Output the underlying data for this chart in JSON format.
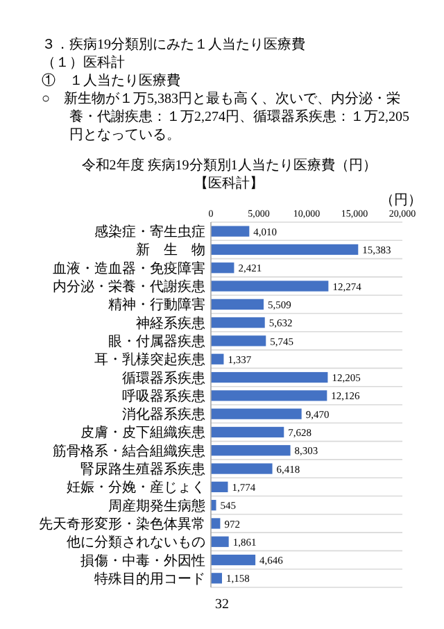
{
  "chart_data": {
    "type": "bar",
    "orientation": "horizontal",
    "title": "令和2年度 疾病19分類別1人当たり医療費（円）",
    "subtitle": "【医科計】",
    "xlabel": "（円）",
    "categories": [
      "感染症・寄生虫症",
      "新　生　物",
      "血液・造血器・免疫障害",
      "内分泌・栄養・代謝疾患",
      "精神・行動障害",
      "神経系疾患",
      "眼・付属器疾患",
      "耳・乳様突起疾患",
      "循環器系疾患",
      "呼吸器系疾患",
      "消化器系疾患",
      "皮膚・皮下組織疾患",
      "筋骨格系・結合組織疾患",
      "腎尿路生殖器系疾患",
      "妊娠・分娩・産じょく",
      "周産期発生病態",
      "先天奇形変形・染色体異常",
      "他に分類されないもの",
      "損傷・中毒・外因性",
      "特殊目的用コード"
    ],
    "values": [
      4010,
      15383,
      2421,
      12274,
      5509,
      5632,
      5745,
      1337,
      12205,
      12126,
      9470,
      7628,
      8303,
      6418,
      1774,
      545,
      972,
      1861,
      4646,
      1158
    ],
    "value_labels": [
      "4,010",
      "15,383",
      "2,421",
      "12,274",
      "5,509",
      "5,632",
      "5,745",
      "1,337",
      "12,205",
      "12,126",
      "9,470",
      "7,628",
      "8,303",
      "6,418",
      "1,774",
      "545",
      "972",
      "1,861",
      "4,646",
      "1,158"
    ],
    "color": "#4472c4",
    "xlim": [
      0,
      20000
    ],
    "xticks": [
      0,
      {
        "value": 5000,
        "label": "5,000"
      },
      {
        "value": 10000,
        "label": "10,000"
      },
      {
        "value": 15000,
        "label": "15,000"
      },
      {
        "value": 20000,
        "label": "20,000"
      }
    ],
    "grid": "y",
    "annotations": [
      "３．疾病19分類別にみた１人当たり医療費",
      "（１）医科計",
      "①　１人当たり医療費",
      "○　新生物が１万5,383円と最も高く、次いで、内分泌・栄養・代謝疾患：１万2,274円、循環器系疾患：１万2,205円となっている。",
      "32"
    ]
  }
}
